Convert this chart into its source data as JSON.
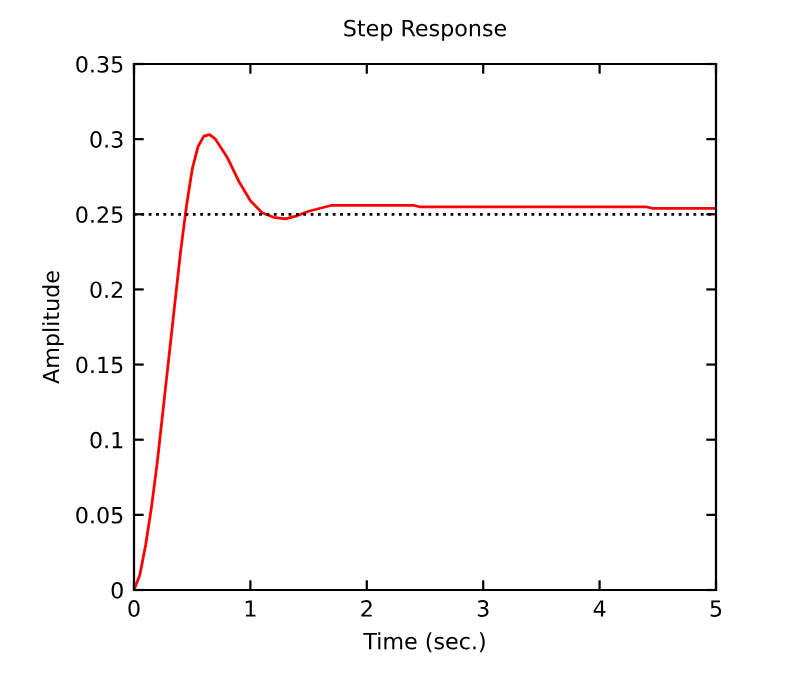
{
  "chart_data": {
    "type": "line",
    "title": "Step Response",
    "xlabel": "Time (sec.)",
    "ylabel": "Amplitude",
    "series": [
      {
        "color": "#ff0000",
        "x": [
          0,
          0.05,
          0.1,
          0.15,
          0.2,
          0.25,
          0.3,
          0.35,
          0.4,
          0.45,
          0.5,
          0.55,
          0.6,
          0.65,
          0.7,
          0.8,
          0.9,
          1.0,
          1.1,
          1.2,
          1.3,
          1.4,
          1.5,
          1.6,
          1.7,
          1.8,
          2.0,
          2.2,
          2.4,
          2.45,
          3.0,
          4.4,
          4.45,
          5.0
        ],
        "values": [
          0,
          0.01,
          0.03,
          0.055,
          0.085,
          0.12,
          0.155,
          0.19,
          0.225,
          0.255,
          0.28,
          0.295,
          0.302,
          0.303,
          0.3,
          0.288,
          0.272,
          0.259,
          0.251,
          0.248,
          0.247,
          0.249,
          0.252,
          0.254,
          0.256,
          0.256,
          0.256,
          0.256,
          0.256,
          0.255,
          0.255,
          0.255,
          0.254,
          0.254
        ]
      }
    ],
    "ref_lines": [
      {
        "axis": "y",
        "value": 0.25,
        "color": "#000000",
        "line_style": "dotted"
      }
    ],
    "xlim": [
      0,
      5
    ],
    "xticks": [
      0,
      1,
      2,
      3,
      4,
      5
    ],
    "ylim": [
      0,
      0.35
    ],
    "yticks": [
      0,
      0.05,
      0.1,
      0.15,
      0.2,
      0.25,
      0.3,
      0.35
    ],
    "grid": false,
    "legend": false,
    "marker": "none",
    "line_style": "solid"
  }
}
